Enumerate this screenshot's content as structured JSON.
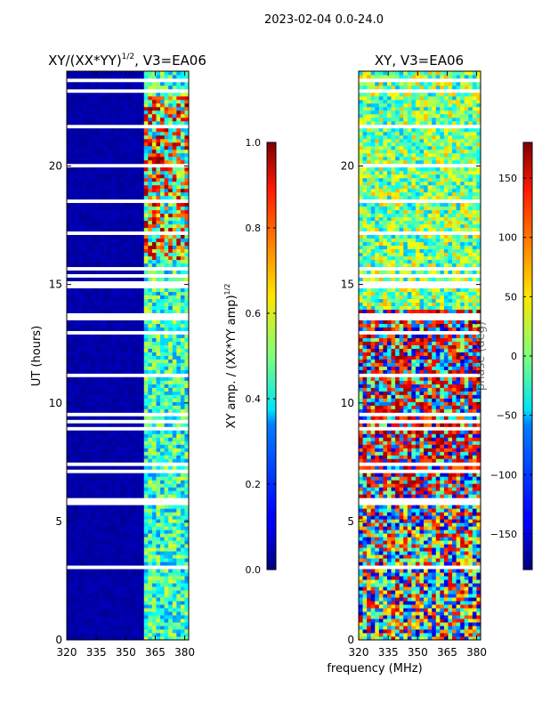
{
  "suptitle": "2023-02-04 0.0-24.0",
  "chart_data": [
    {
      "type": "heatmap",
      "title_main": "XY/(XX*YY)",
      "title_exp": "1/2",
      "title_tail": ", V3=EA06",
      "xlabel": "",
      "ylabel": "UT (hours)",
      "xlim": [
        320,
        382
      ],
      "ylim": [
        0,
        24
      ],
      "x_ticks": [
        320,
        335,
        350,
        365,
        380
      ],
      "y_ticks": [
        0,
        5,
        10,
        15,
        20
      ],
      "colorbar": {
        "label_main": "XY amp. / (XX*YY amp)",
        "label_exp": "1/2",
        "range": [
          0.0,
          1.0
        ],
        "ticks": [
          "0.0",
          "0.2",
          "0.4",
          "0.6",
          "0.8",
          "1.0"
        ],
        "tick_values": [
          0.0,
          0.2,
          0.4,
          0.6,
          0.8,
          1.0
        ]
      }
    },
    {
      "type": "heatmap",
      "title": "XY, V3=EA06",
      "xlabel": "frequency (MHz)",
      "ylabel": "phase (deg)",
      "xlim": [
        320,
        382
      ],
      "ylim": [
        0,
        24
      ],
      "x_ticks": [
        320,
        335,
        350,
        365,
        380
      ],
      "y_ticks": [
        0,
        5,
        10,
        15,
        20
      ],
      "colorbar": {
        "range": [
          -180,
          180
        ],
        "ticks": [
          "−150",
          "−100",
          "−50",
          "0",
          "50",
          "100",
          "150"
        ],
        "tick_values": [
          -150,
          -100,
          -50,
          0,
          50,
          100,
          150
        ]
      }
    }
  ]
}
